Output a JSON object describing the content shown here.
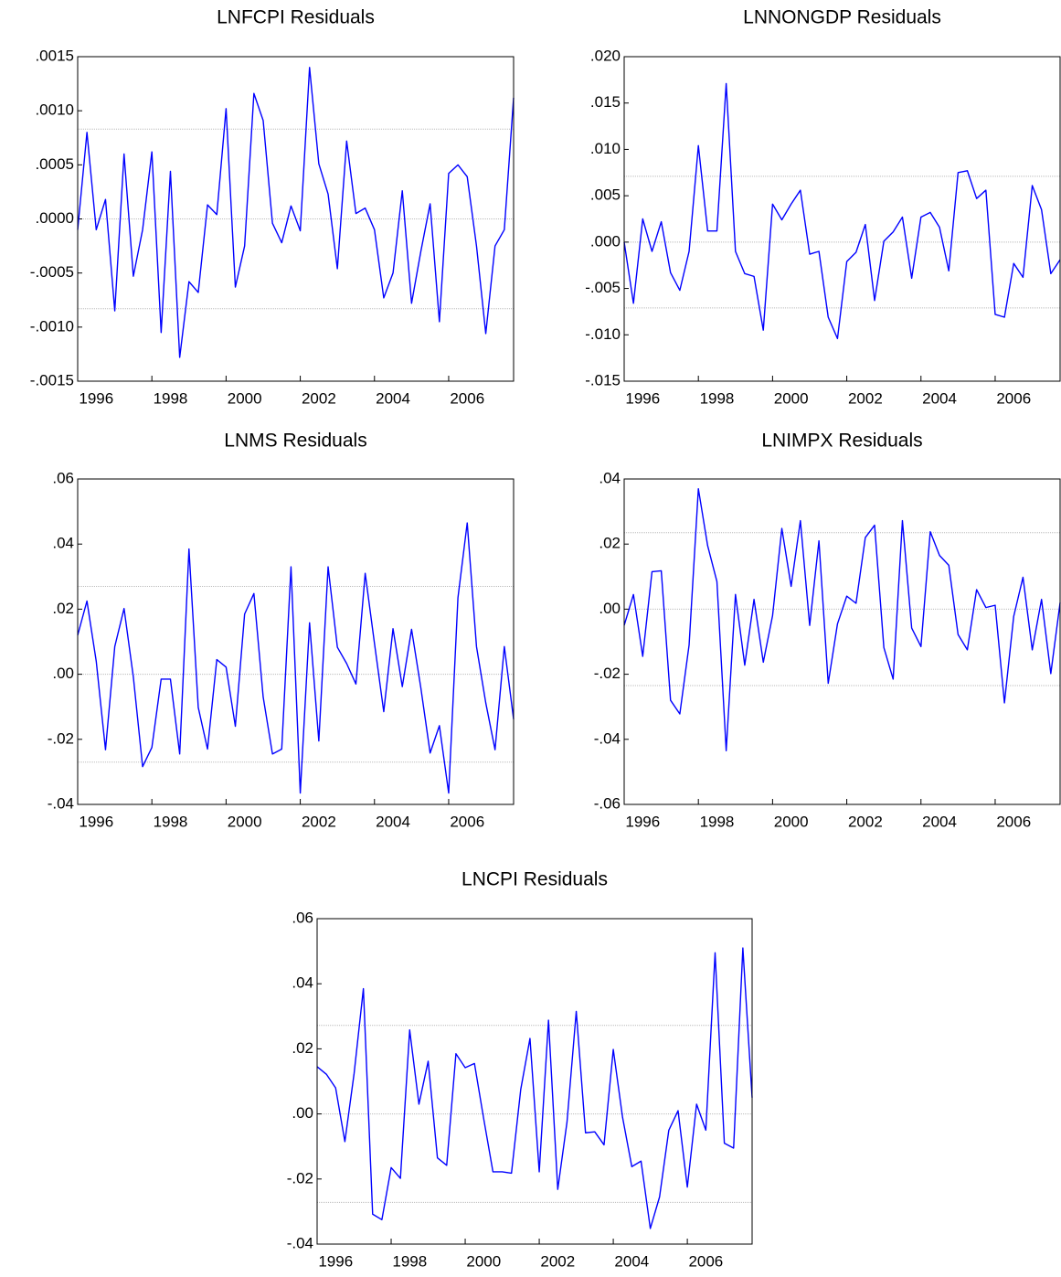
{
  "chart_data": [
    {
      "type": "line",
      "title": "LNFCPI Residuals",
      "color": "#0000ff",
      "x": [
        1996,
        1996.25,
        1996.5,
        1996.75,
        1997,
        1997.25,
        1997.5,
        1997.75,
        1998,
        1998.25,
        1998.5,
        1998.75,
        1999,
        1999.25,
        1999.5,
        1999.75,
        2000,
        2000.25,
        2000.5,
        2000.75,
        2001,
        2001.25,
        2001.5,
        2001.75,
        2002,
        2002.25,
        2002.5,
        2002.75,
        2003,
        2003.25,
        2003.5,
        2003.75,
        2004,
        2004.25,
        2004.5,
        2004.75,
        2005,
        2005.25,
        2005.5,
        2005.75,
        2006,
        2006.25,
        2006.5,
        2006.75,
        2007,
        2007.25,
        2007.5,
        2007.75
      ],
      "values": [
        -0.0001,
        0.0008,
        -0.0001,
        0.00018,
        -0.00085,
        0.0006,
        -0.00053,
        -0.0001,
        0.00062,
        -0.00105,
        0.00044,
        -0.00128,
        -0.00058,
        -0.00068,
        0.00013,
        4e-05,
        0.00102,
        -0.00063,
        -0.00025,
        0.00116,
        0.00091,
        -4e-05,
        -0.00022,
        0.00012,
        -0.00011,
        0.0014,
        0.00051,
        0.00023,
        -0.00046,
        0.00072,
        5e-05,
        0.0001,
        -0.0001,
        -0.00073,
        -0.0005,
        0.00026,
        -0.00078,
        -0.0003,
        0.00014,
        -0.00095,
        0.00042,
        0.0005,
        0.00039,
        -0.00025,
        -0.00106,
        -0.00025,
        -0.0001,
        0.00112
      ],
      "xlim": [
        1996,
        2007.75
      ],
      "xticks": [
        1996,
        1998,
        2000,
        2002,
        2004,
        2006
      ],
      "ylim": [
        -0.0015,
        0.0015
      ],
      "yticks": [
        {
          "value": -0.0015,
          "label": "-.0015"
        },
        {
          "value": -0.001,
          "label": "-.0010"
        },
        {
          "value": -0.0005,
          "label": "-.0005"
        },
        {
          "value": 0,
          "label": ".0000"
        },
        {
          "value": 0.0005,
          "label": ".0005"
        },
        {
          "value": 0.001,
          "label": ".0010"
        },
        {
          "value": 0.0015,
          "label": ".0015"
        }
      ],
      "reference_lines": [
        -0.00083,
        0,
        0.00083
      ]
    },
    {
      "type": "line",
      "title": "LNNONGDP Residuals",
      "color": "#0000ff",
      "x": [
        1996,
        1996.25,
        1996.5,
        1996.75,
        1997,
        1997.25,
        1997.5,
        1997.75,
        1998,
        1998.25,
        1998.5,
        1998.75,
        1999,
        1999.25,
        1999.5,
        1999.75,
        2000,
        2000.25,
        2000.5,
        2000.75,
        2001,
        2001.25,
        2001.5,
        2001.75,
        2002,
        2002.25,
        2002.5,
        2002.75,
        2003,
        2003.25,
        2003.5,
        2003.75,
        2004,
        2004.25,
        2004.5,
        2004.75,
        2005,
        2005.25,
        2005.5,
        2005.75,
        2006,
        2006.25,
        2006.5,
        2006.75,
        2007,
        2007.25,
        2007.5,
        2007.75
      ],
      "values": [
        0.0,
        -0.0066,
        0.0025,
        -0.001,
        0.0022,
        -0.0033,
        -0.0052,
        -0.001,
        0.0104,
        0.0012,
        0.0012,
        0.0171,
        -0.001,
        -0.0034,
        -0.0037,
        -0.0095,
        0.0041,
        0.0024,
        0.0041,
        0.0056,
        -0.0013,
        -0.001,
        -0.0081,
        -0.0104,
        -0.0021,
        -0.0011,
        0.0019,
        -0.0063,
        0.0001,
        0.0011,
        0.0027,
        -0.0039,
        0.0027,
        0.0032,
        0.0016,
        -0.0031,
        0.0075,
        0.0077,
        0.0047,
        0.0056,
        -0.0078,
        -0.0081,
        -0.0023,
        -0.0038,
        0.0061,
        0.0035,
        -0.0034,
        -0.0019
      ],
      "xlim": [
        1996,
        2007.75
      ],
      "xticks": [
        1996,
        1998,
        2000,
        2002,
        2004,
        2006
      ],
      "ylim": [
        -0.015,
        0.02
      ],
      "yticks": [
        {
          "value": -0.015,
          "label": "-.015"
        },
        {
          "value": -0.01,
          "label": "-.010"
        },
        {
          "value": -0.005,
          "label": "-.005"
        },
        {
          "value": 0,
          "label": ".000"
        },
        {
          "value": 0.005,
          "label": ".005"
        },
        {
          "value": 0.01,
          "label": ".010"
        },
        {
          "value": 0.015,
          "label": ".015"
        },
        {
          "value": 0.02,
          "label": ".020"
        }
      ],
      "reference_lines": [
        -0.0071,
        0,
        0.0071
      ]
    },
    {
      "type": "line",
      "title": "LNMS Residuals",
      "color": "#0000ff",
      "x": [
        1996,
        1996.25,
        1996.5,
        1996.75,
        1997,
        1997.25,
        1997.5,
        1997.75,
        1998,
        1998.25,
        1998.5,
        1998.75,
        1999,
        1999.25,
        1999.5,
        1999.75,
        2000,
        2000.25,
        2000.5,
        2000.75,
        2001,
        2001.25,
        2001.5,
        2001.75,
        2002,
        2002.25,
        2002.5,
        2002.75,
        2003,
        2003.25,
        2003.5,
        2003.75,
        2004,
        2004.25,
        2004.5,
        2004.75,
        2005,
        2005.25,
        2005.5,
        2005.75,
        2006,
        2006.25,
        2006.5,
        2006.75,
        2007,
        2007.25,
        2007.5,
        2007.75
      ],
      "values": [
        0.012,
        0.0225,
        0.004,
        -0.0232,
        0.0085,
        0.0202,
        -0.0008,
        -0.0284,
        -0.0225,
        -0.0015,
        -0.0015,
        -0.0245,
        0.0385,
        -0.0102,
        -0.023,
        0.0045,
        0.0022,
        -0.016,
        0.0185,
        0.0248,
        -0.007,
        -0.0245,
        -0.023,
        0.033,
        -0.0365,
        0.0158,
        -0.0205,
        0.033,
        0.0083,
        0.0033,
        -0.003,
        0.031,
        0.0095,
        -0.0115,
        0.014,
        -0.0038,
        0.0138,
        -0.0042,
        -0.0242,
        -0.0158,
        -0.0365,
        0.0235,
        0.0465,
        0.0085,
        -0.0088,
        -0.0232,
        0.0085,
        -0.0138
      ],
      "xlim": [
        1996,
        2007.75
      ],
      "xticks": [
        1996,
        1998,
        2000,
        2002,
        2004,
        2006
      ],
      "ylim": [
        -0.04,
        0.06
      ],
      "yticks": [
        {
          "value": -0.04,
          "label": "-.04"
        },
        {
          "value": -0.02,
          "label": "-.02"
        },
        {
          "value": 0,
          "label": ".00"
        },
        {
          "value": 0.02,
          "label": ".02"
        },
        {
          "value": 0.04,
          "label": ".04"
        },
        {
          "value": 0.06,
          "label": ".06"
        }
      ],
      "reference_lines": [
        -0.027,
        0,
        0.027
      ]
    },
    {
      "type": "line",
      "title": "LNIMPX Residuals",
      "color": "#0000ff",
      "x": [
        1996,
        1996.25,
        1996.5,
        1996.75,
        1997,
        1997.25,
        1997.5,
        1997.75,
        1998,
        1998.25,
        1998.5,
        1998.75,
        1999,
        1999.25,
        1999.5,
        1999.75,
        2000,
        2000.25,
        2000.5,
        2000.75,
        2001,
        2001.25,
        2001.5,
        2001.75,
        2002,
        2002.25,
        2002.5,
        2002.75,
        2003,
        2003.25,
        2003.5,
        2003.75,
        2004,
        2004.25,
        2004.5,
        2004.75,
        2005,
        2005.25,
        2005.5,
        2005.75,
        2006,
        2006.25,
        2006.5,
        2006.75,
        2007,
        2007.25,
        2007.5,
        2007.75
      ],
      "values": [
        -0.005,
        0.0045,
        -0.0145,
        0.0115,
        0.0118,
        -0.028,
        -0.0322,
        -0.011,
        0.037,
        0.0195,
        0.0085,
        -0.0435,
        0.0045,
        -0.0172,
        0.003,
        -0.0163,
        -0.002,
        0.0248,
        0.007,
        0.0272,
        -0.005,
        0.021,
        -0.0228,
        -0.0045,
        0.004,
        0.0018,
        0.022,
        0.0258,
        -0.0118,
        -0.0215,
        0.0272,
        -0.0058,
        -0.0115,
        0.0238,
        0.0165,
        0.0135,
        -0.0078,
        -0.0125,
        0.006,
        0.0005,
        0.0012,
        -0.0288,
        -0.0022,
        0.0098,
        -0.0125,
        0.003,
        -0.0198,
        0.002
      ],
      "xlim": [
        1996,
        2007.75
      ],
      "xticks": [
        1996,
        1998,
        2000,
        2002,
        2004,
        2006
      ],
      "ylim": [
        -0.06,
        0.04
      ],
      "yticks": [
        {
          "value": -0.06,
          "label": "-.06"
        },
        {
          "value": -0.04,
          "label": "-.04"
        },
        {
          "value": -0.02,
          "label": "-.02"
        },
        {
          "value": 0,
          "label": ".00"
        },
        {
          "value": 0.02,
          "label": ".02"
        },
        {
          "value": 0.04,
          "label": ".04"
        }
      ],
      "reference_lines": [
        -0.0235,
        0,
        0.0235
      ]
    },
    {
      "type": "line",
      "title": "LNCPI Residuals",
      "color": "#0000ff",
      "x": [
        1996,
        1996.25,
        1996.5,
        1996.75,
        1997,
        1997.25,
        1997.5,
        1997.75,
        1998,
        1998.25,
        1998.5,
        1998.75,
        1999,
        1999.25,
        1999.5,
        1999.75,
        2000,
        2000.25,
        2000.5,
        2000.75,
        2001,
        2001.25,
        2001.5,
        2001.75,
        2002,
        2002.25,
        2002.5,
        2002.75,
        2003,
        2003.25,
        2003.5,
        2003.75,
        2004,
        2004.25,
        2004.5,
        2004.75,
        2005,
        2005.25,
        2005.5,
        2005.75,
        2006,
        2006.25,
        2006.5,
        2006.75,
        2007,
        2007.25,
        2007.5,
        2007.75
      ],
      "values": [
        0.0145,
        0.0122,
        0.008,
        -0.0085,
        0.0125,
        0.0385,
        -0.0308,
        -0.0325,
        -0.0165,
        -0.0198,
        0.0258,
        0.003,
        0.0162,
        -0.0135,
        -0.0158,
        0.0185,
        0.0142,
        0.0155,
        -0.0015,
        -0.0178,
        -0.0178,
        -0.0182,
        0.0075,
        0.0232,
        -0.0178,
        0.0288,
        -0.0232,
        -0.0025,
        0.0315,
        -0.0058,
        -0.0055,
        -0.0095,
        0.0198,
        -0.001,
        -0.0162,
        -0.0145,
        -0.0352,
        -0.0255,
        -0.005,
        0.001,
        -0.0225,
        0.003,
        -0.005,
        0.0495,
        -0.009,
        -0.0105,
        0.051,
        0.005
      ],
      "xlim": [
        1996,
        2007.75
      ],
      "xticks": [
        1996,
        1998,
        2000,
        2002,
        2004,
        2006
      ],
      "ylim": [
        -0.04,
        0.06
      ],
      "yticks": [
        {
          "value": -0.04,
          "label": "-.04"
        },
        {
          "value": -0.02,
          "label": "-.02"
        },
        {
          "value": 0,
          "label": ".00"
        },
        {
          "value": 0.02,
          "label": ".02"
        },
        {
          "value": 0.04,
          "label": ".04"
        },
        {
          "value": 0.06,
          "label": ".06"
        }
      ],
      "reference_lines": [
        -0.0272,
        0,
        0.0272
      ]
    }
  ]
}
